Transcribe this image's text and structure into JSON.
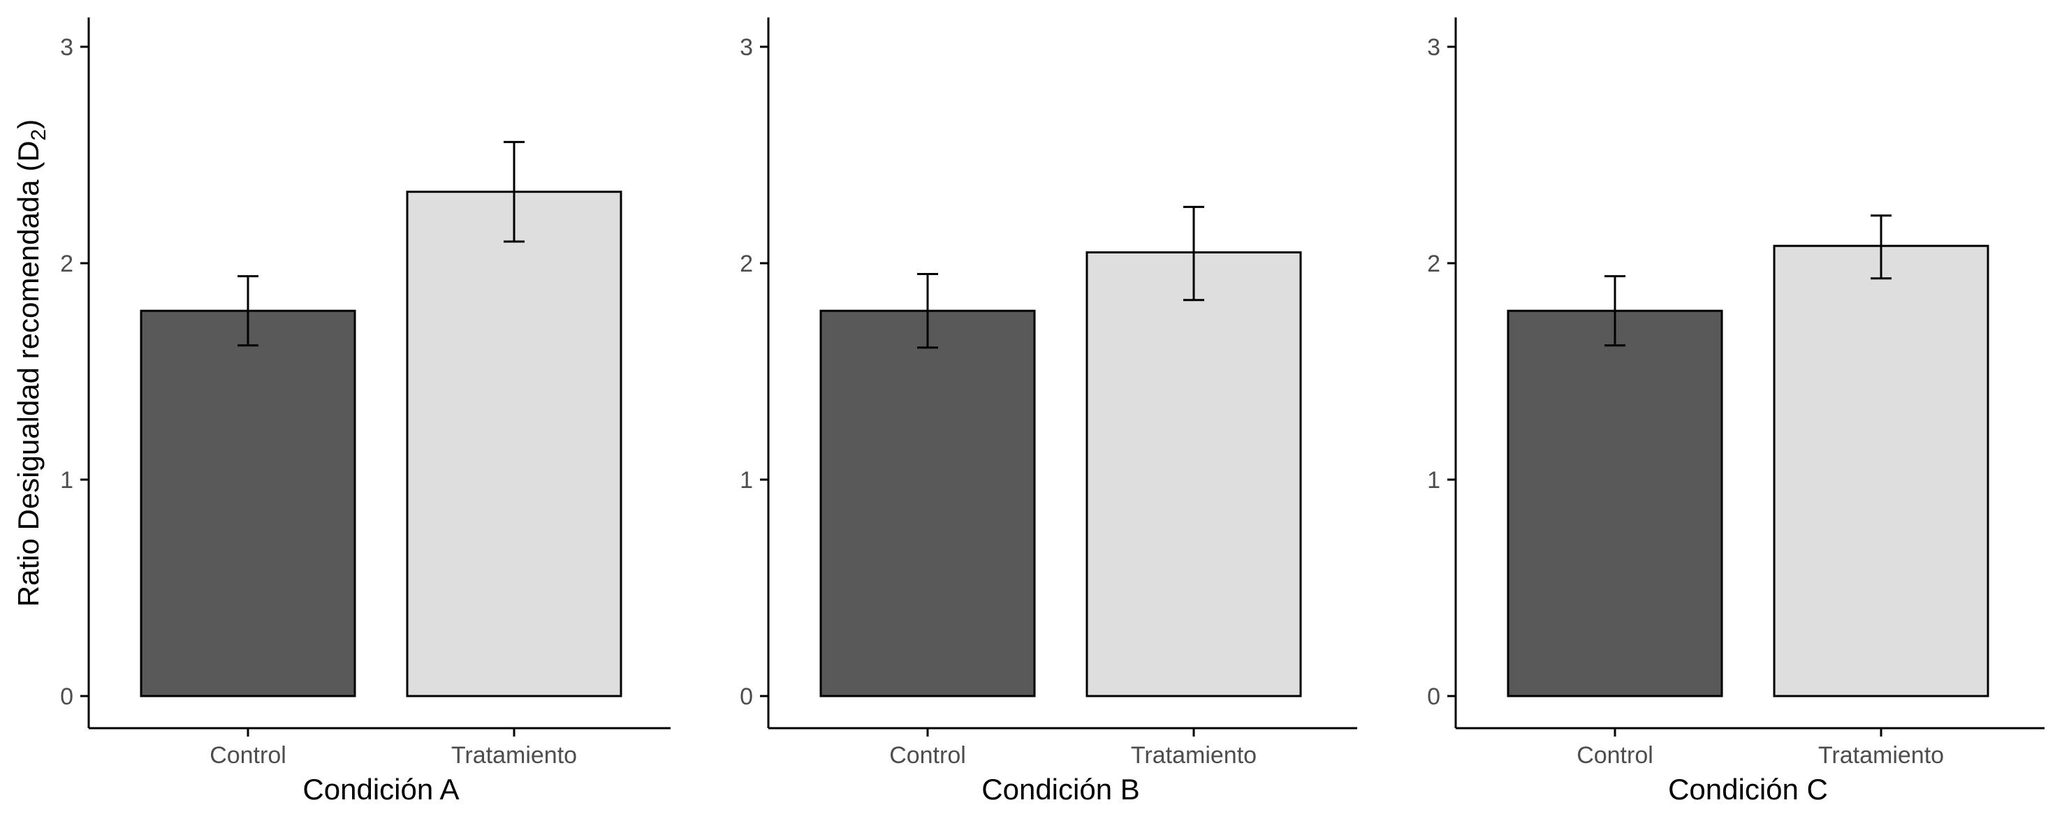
{
  "colors": {
    "control": "#595959",
    "tratamiento": "#dedede",
    "stroke": "#000000",
    "axis": "#000000",
    "tick_text": "#4d4d4d"
  },
  "chart_data": {
    "type": "bar",
    "ylabel": "Ratio Desigualdad recomendada (D",
    "ylabel_subscript": "2",
    "ylabel_close": ")",
    "ylim": [
      0,
      3
    ],
    "yticks": [
      "0",
      "1",
      "2",
      "3"
    ],
    "grid": false,
    "legend": "none",
    "categories": [
      "Control",
      "Tratamiento"
    ],
    "panels": [
      {
        "xlabel": "Condición A",
        "values": [
          1.78,
          2.33
        ],
        "error_low": [
          1.62,
          2.1
        ],
        "error_high": [
          1.94,
          2.56
        ]
      },
      {
        "xlabel": "Condición B",
        "values": [
          1.78,
          2.05
        ],
        "error_low": [
          1.61,
          1.83
        ],
        "error_high": [
          1.95,
          2.26
        ]
      },
      {
        "xlabel": "Condición C",
        "values": [
          1.78,
          2.08
        ],
        "error_low": [
          1.62,
          1.93
        ],
        "error_high": [
          1.94,
          2.22
        ]
      }
    ]
  }
}
